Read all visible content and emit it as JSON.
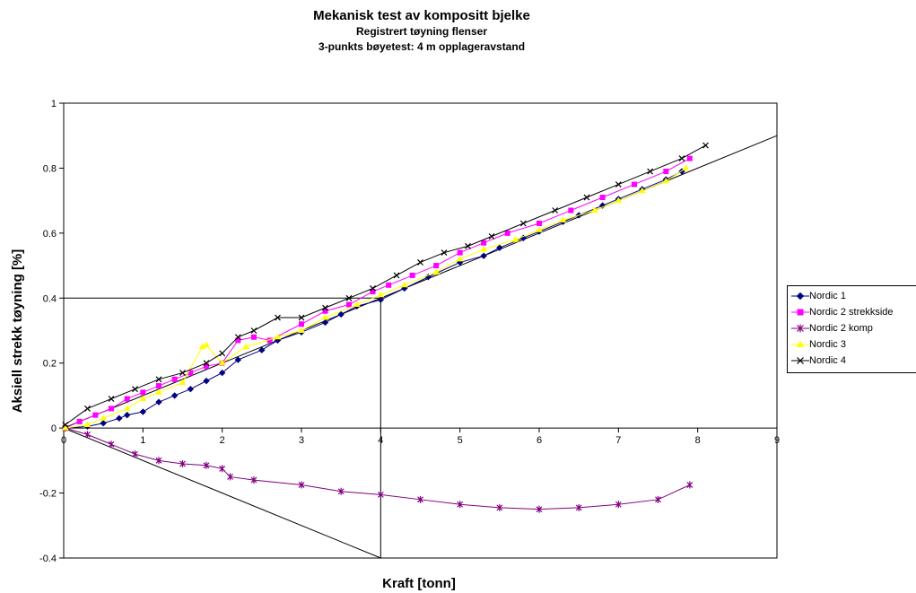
{
  "chart_data": {
    "type": "line",
    "title": "Mekanisk test av kompositt bjelke",
    "subtitle_1": "Registrert tøyning flenser",
    "subtitle_2": "3-punkts bøyetest: 4 m opplageravstand",
    "xlabel": "Kraft [tonn]",
    "ylabel": "Aksiell strekk tøyning [%]",
    "xlim": [
      0,
      9
    ],
    "ylim": [
      -0.4,
      1
    ],
    "x_ticks": [
      "0",
      "1",
      "2",
      "3",
      "4",
      "5",
      "6",
      "7",
      "8",
      "9"
    ],
    "y_ticks": [
      "1",
      "0.8",
      "0.6",
      "0.4",
      "0.2",
      "0",
      "-0.2",
      "-0.4"
    ],
    "grid": false,
    "legend_position": "right",
    "series": [
      {
        "name": "Nordic 1",
        "color": "#000080",
        "marker": "diamond",
        "x": [
          0.02,
          0.3,
          0.5,
          0.7,
          0.8,
          1.0,
          1.2,
          1.4,
          1.6,
          1.8,
          2.0,
          2.2,
          2.5,
          2.7,
          3.0,
          3.3,
          3.5,
          3.7,
          4.0,
          4.3,
          4.6,
          5.0,
          5.3,
          5.5,
          5.8,
          6.0,
          6.3,
          6.5,
          6.8,
          7.0,
          7.3,
          7.6,
          7.8
        ],
        "y": [
          0.0,
          0.005,
          0.015,
          0.03,
          0.04,
          0.05,
          0.08,
          0.1,
          0.12,
          0.145,
          0.17,
          0.21,
          0.24,
          0.27,
          0.295,
          0.325,
          0.35,
          0.375,
          0.395,
          0.43,
          0.465,
          0.51,
          0.53,
          0.555,
          0.585,
          0.605,
          0.635,
          0.655,
          0.685,
          0.705,
          0.735,
          0.765,
          0.79
        ]
      },
      {
        "name": "Nordic 2 strekkside",
        "color": "#FF00FF",
        "marker": "square",
        "x": [
          0.02,
          0.2,
          0.4,
          0.6,
          0.8,
          1.0,
          1.2,
          1.4,
          1.6,
          1.8,
          2.0,
          2.2,
          2.4,
          2.6,
          3.0,
          3.3,
          3.6,
          3.9,
          4.1,
          4.4,
          4.7,
          5.0,
          5.3,
          5.6,
          6.0,
          6.4,
          6.8,
          7.2,
          7.6,
          7.9
        ],
        "y": [
          0.0,
          0.02,
          0.04,
          0.06,
          0.09,
          0.11,
          0.13,
          0.15,
          0.17,
          0.19,
          0.2,
          0.27,
          0.28,
          0.27,
          0.32,
          0.36,
          0.38,
          0.42,
          0.44,
          0.47,
          0.5,
          0.54,
          0.57,
          0.6,
          0.63,
          0.67,
          0.71,
          0.75,
          0.79,
          0.83
        ]
      },
      {
        "name": "Nordic 2 komp",
        "color": "#800080",
        "marker": "star",
        "x": [
          0.02,
          0.3,
          0.6,
          0.9,
          1.2,
          1.5,
          1.8,
          2.0,
          2.1,
          2.4,
          3.0,
          3.5,
          4.0,
          4.5,
          5.0,
          5.5,
          6.0,
          6.5,
          7.0,
          7.5,
          7.9
        ],
        "y": [
          0.0,
          -0.02,
          -0.05,
          -0.08,
          -0.1,
          -0.11,
          -0.115,
          -0.125,
          -0.15,
          -0.16,
          -0.175,
          -0.195,
          -0.205,
          -0.22,
          -0.235,
          -0.245,
          -0.25,
          -0.245,
          -0.235,
          -0.22,
          -0.175
        ]
      },
      {
        "name": "Nordic 3",
        "color": "#FFFF00",
        "marker": "triangle",
        "x": [
          0.02,
          0.3,
          0.5,
          0.8,
          1.0,
          1.2,
          1.5,
          1.75,
          1.8,
          2.0,
          2.3,
          2.7,
          3.0,
          3.3,
          3.7,
          4.0,
          4.3,
          4.7,
          5.0,
          5.3,
          5.7,
          6.0,
          6.3,
          6.7,
          7.0,
          7.3,
          7.6,
          7.85
        ],
        "y": [
          0.0,
          0.01,
          0.03,
          0.06,
          0.09,
          0.11,
          0.14,
          0.25,
          0.255,
          0.2,
          0.25,
          0.28,
          0.3,
          0.34,
          0.38,
          0.41,
          0.44,
          0.48,
          0.52,
          0.55,
          0.58,
          0.61,
          0.64,
          0.67,
          0.7,
          0.73,
          0.76,
          0.8
        ]
      },
      {
        "name": "Nordic 4",
        "color": "#000000",
        "marker": "x",
        "x": [
          0.02,
          0.3,
          0.6,
          0.9,
          1.2,
          1.5,
          1.8,
          2.0,
          2.2,
          2.4,
          2.7,
          3.0,
          3.3,
          3.6,
          3.9,
          4.2,
          4.5,
          4.8,
          5.1,
          5.4,
          5.8,
          6.2,
          6.6,
          7.0,
          7.4,
          7.8,
          8.1
        ],
        "y": [
          0.01,
          0.06,
          0.09,
          0.12,
          0.15,
          0.17,
          0.2,
          0.23,
          0.28,
          0.3,
          0.34,
          0.34,
          0.37,
          0.4,
          0.43,
          0.47,
          0.51,
          0.54,
          0.56,
          0.59,
          0.63,
          0.67,
          0.71,
          0.75,
          0.79,
          0.83,
          0.87
        ]
      }
    ],
    "reference_lines": [
      {
        "x": [
          0,
          9
        ],
        "y": [
          0,
          0.9
        ]
      },
      {
        "x": [
          0,
          4,
          4
        ],
        "y": [
          0.4,
          0.4,
          0
        ]
      },
      {
        "x": [
          0,
          4,
          4
        ],
        "y": [
          0,
          -0.4,
          0
        ]
      }
    ]
  }
}
